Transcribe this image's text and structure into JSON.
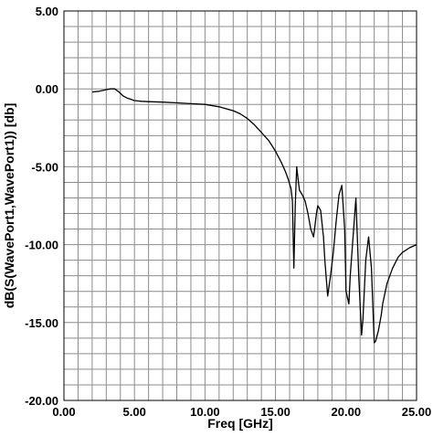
{
  "chart_data": {
    "type": "line",
    "title": "",
    "xlabel": "Freq [GHz]",
    "ylabel": "dB(S(WavePort1,WavePort1)) [db]",
    "xlim": [
      0,
      25
    ],
    "ylim": [
      -20,
      5
    ],
    "x_ticks": [
      {
        "value": 0,
        "label": "0.00"
      },
      {
        "value": 5,
        "label": "5.00"
      },
      {
        "value": 10,
        "label": "10.00"
      },
      {
        "value": 15,
        "label": "15.00"
      },
      {
        "value": 20,
        "label": "20.00"
      },
      {
        "value": 25,
        "label": "25.00"
      }
    ],
    "y_ticks": [
      {
        "value": 5,
        "label": "5.00"
      },
      {
        "value": 0,
        "label": "0.00"
      },
      {
        "value": -5,
        "label": "-5.00"
      },
      {
        "value": -10,
        "label": "-10.00"
      },
      {
        "value": -15,
        "label": "-15.00"
      },
      {
        "value": -20,
        "label": "-20.00"
      }
    ],
    "grid": true,
    "grid_minor_step": 1,
    "line_color": "#000000",
    "series": [
      {
        "x": [
          2.0,
          2.5,
          3.0,
          3.3,
          3.6,
          3.9,
          4.2,
          4.5,
          5.0,
          5.5,
          6.0,
          7.0,
          8.0,
          9.0,
          10.0,
          11.0,
          12.0,
          12.5,
          13.0,
          13.5,
          14.0,
          14.5,
          15.0,
          15.4,
          15.7,
          15.9,
          16.1,
          16.2,
          16.3,
          16.4,
          16.5,
          16.6,
          16.7,
          16.9,
          17.1,
          17.3,
          17.5,
          17.7,
          17.9,
          18.0,
          18.2,
          18.4,
          18.5,
          18.7,
          18.9,
          19.1,
          19.3,
          19.5,
          19.7,
          19.9,
          20.0,
          20.2,
          20.3,
          20.5,
          20.7,
          20.9,
          21.1,
          21.2,
          21.4,
          21.6,
          21.8,
          22.0,
          22.1,
          22.3,
          22.5,
          22.6,
          22.9,
          23.3,
          23.7,
          24.0,
          24.5,
          25.0
        ],
        "y": [
          -0.2,
          -0.15,
          -0.05,
          0.0,
          0.0,
          -0.2,
          -0.45,
          -0.6,
          -0.75,
          -0.8,
          -0.82,
          -0.85,
          -0.9,
          -0.95,
          -1.0,
          -1.15,
          -1.4,
          -1.6,
          -1.9,
          -2.3,
          -2.8,
          -3.3,
          -4.0,
          -4.7,
          -5.3,
          -5.8,
          -6.4,
          -7.2,
          -11.5,
          -7.5,
          -5.0,
          -5.8,
          -6.5,
          -6.8,
          -7.2,
          -8.0,
          -9.0,
          -9.5,
          -8.0,
          -7.5,
          -7.8,
          -9.5,
          -11.0,
          -13.3,
          -12.0,
          -10.5,
          -8.5,
          -6.8,
          -6.2,
          -9.0,
          -13.0,
          -13.8,
          -12.0,
          -9.5,
          -7.0,
          -12.0,
          -15.8,
          -14.8,
          -11.0,
          -9.5,
          -11.5,
          -16.3,
          -16.2,
          -15.5,
          -14.5,
          -13.8,
          -12.5,
          -11.5,
          -10.8,
          -10.5,
          -10.2,
          -10.0
        ]
      }
    ]
  }
}
